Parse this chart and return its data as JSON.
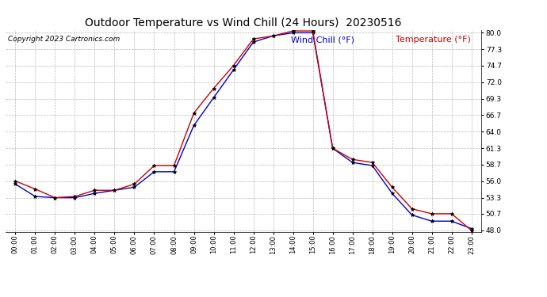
{
  "title": "Outdoor Temperature vs Wind Chill (24 Hours)  20230516",
  "copyright": "Copyright 2023 Cartronics.com",
  "legend_wind_chill": "Wind Chill (°F)",
  "legend_temperature": "Temperature (°F)",
  "hours": [
    0,
    1,
    2,
    3,
    4,
    5,
    6,
    7,
    8,
    9,
    10,
    11,
    12,
    13,
    14,
    15,
    16,
    17,
    18,
    19,
    20,
    21,
    22,
    23
  ],
  "temperature": [
    56.0,
    54.7,
    53.3,
    53.5,
    54.5,
    54.5,
    55.5,
    58.5,
    58.5,
    67.0,
    71.0,
    74.7,
    79.0,
    79.5,
    80.3,
    80.3,
    61.3,
    59.5,
    59.0,
    55.0,
    51.5,
    50.7,
    50.7,
    48.0
  ],
  "wind_chill": [
    55.5,
    53.5,
    53.3,
    53.3,
    54.0,
    54.5,
    55.0,
    57.5,
    57.5,
    65.0,
    69.5,
    74.0,
    78.5,
    79.5,
    80.0,
    80.0,
    61.3,
    59.0,
    58.5,
    54.0,
    50.5,
    49.5,
    49.5,
    48.3
  ],
  "temp_color": "#cc0000",
  "wind_chill_color": "#0000cc",
  "marker_color": "#000000",
  "ylim_min": 48.0,
  "ylim_max": 80.0,
  "yticks": [
    48.0,
    50.7,
    53.3,
    56.0,
    58.7,
    61.3,
    64.0,
    66.7,
    69.3,
    72.0,
    74.7,
    77.3,
    80.0
  ],
  "bg_color": "#ffffff",
  "grid_color": "#bbbbbb",
  "title_fontsize": 10,
  "copyright_fontsize": 6.5,
  "legend_fontsize": 8,
  "tick_fontsize": 6.5,
  "xtick_fontsize": 6
}
